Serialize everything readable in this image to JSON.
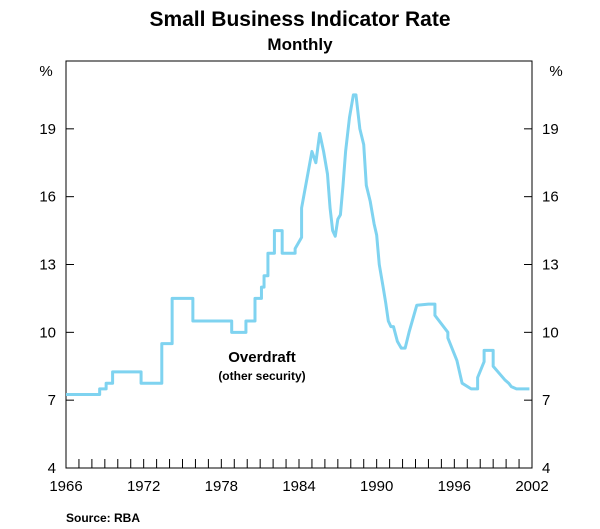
{
  "chart_data": {
    "type": "line",
    "title": "Small Business Indicator Rate",
    "subtitle": "Monthly",
    "ylabel_left": "%",
    "ylabel_right": "%",
    "xlim": [
      1966,
      2002
    ],
    "ylim": [
      4,
      22
    ],
    "yticks": [
      4,
      7,
      10,
      13,
      16,
      19
    ],
    "xticks": [
      1966,
      1972,
      1978,
      1984,
      1990,
      1996,
      2002
    ],
    "ytick_labels": [
      "4",
      "7",
      "10",
      "13",
      "16",
      "19"
    ],
    "xtick_labels": [
      "1966",
      "1972",
      "1978",
      "1984",
      "1990",
      "1996",
      "2002"
    ],
    "annotation": {
      "label": "Overdraft",
      "sublabel": "(other security)"
    },
    "source": "Source: RBA",
    "line_color": "#7fd3f0",
    "series": [
      {
        "name": "Overdraft (other security)",
        "x": [
          1966.0,
          1968.6,
          1968.6,
          1969.1,
          1969.1,
          1969.6,
          1969.6,
          1971.8,
          1971.8,
          1973.4,
          1973.4,
          1974.2,
          1974.2,
          1975.8,
          1975.8,
          1978.8,
          1978.8,
          1979.9,
          1979.9,
          1980.6,
          1980.6,
          1981.1,
          1981.1,
          1981.3,
          1981.3,
          1981.6,
          1981.6,
          1982.1,
          1982.1,
          1982.7,
          1982.7,
          1983.0,
          1983.0,
          1983.7,
          1983.7,
          1984.2,
          1984.2,
          1985.0,
          1985.3,
          1985.6,
          1985.9,
          1986.2,
          1986.4,
          1986.6,
          1986.8,
          1987.0,
          1987.2,
          1987.4,
          1987.6,
          1987.9,
          1988.2,
          1988.4,
          1988.7,
          1989.0,
          1989.2,
          1989.5,
          1989.8,
          1990.0,
          1990.2,
          1990.5,
          1990.7,
          1990.9,
          1991.1,
          1991.3,
          1991.6,
          1991.9,
          1992.2,
          1992.5,
          1993.1,
          1993.1,
          1994.0,
          1994.5,
          1994.5,
          1995.5,
          1995.5,
          1996.2,
          1996.2,
          1996.6,
          1996.6,
          1997.3,
          1997.3,
          1997.8,
          1997.8,
          1998.3,
          1998.3,
          1999.0,
          1999.0,
          1999.6,
          1999.9,
          2000.2,
          2000.4,
          2000.6,
          2000.8,
          2001.0,
          2001.2,
          2001.4,
          2001.5,
          2001.8
        ],
        "values": [
          7.25,
          7.25,
          7.5,
          7.5,
          7.75,
          7.75,
          8.25,
          8.25,
          7.75,
          7.75,
          9.5,
          9.5,
          11.5,
          11.5,
          10.5,
          10.5,
          10.0,
          10.0,
          10.5,
          10.5,
          11.5,
          11.5,
          12.0,
          12.0,
          12.5,
          12.5,
          13.5,
          13.5,
          14.5,
          14.5,
          13.5,
          13.5,
          13.5,
          13.5,
          13.7,
          14.2,
          15.5,
          18.0,
          17.5,
          18.8,
          18.0,
          17.0,
          15.5,
          14.5,
          14.25,
          15.0,
          15.2,
          16.5,
          18.0,
          19.5,
          20.5,
          20.5,
          19.0,
          18.3,
          16.5,
          15.8,
          14.8,
          14.3,
          13.0,
          12.0,
          11.3,
          10.5,
          10.25,
          10.25,
          9.6,
          9.3,
          9.3,
          10.0,
          11.2,
          11.2,
          11.25,
          11.25,
          10.75,
          10.0,
          9.75,
          8.75,
          8.75,
          7.75,
          7.75,
          7.5,
          7.5,
          7.5,
          8.0,
          8.7,
          9.2,
          9.2,
          8.5,
          8.1,
          7.9,
          7.75,
          7.6,
          7.55,
          7.5,
          7.5,
          7.5,
          7.5,
          7.5,
          7.5
        ]
      }
    ]
  }
}
